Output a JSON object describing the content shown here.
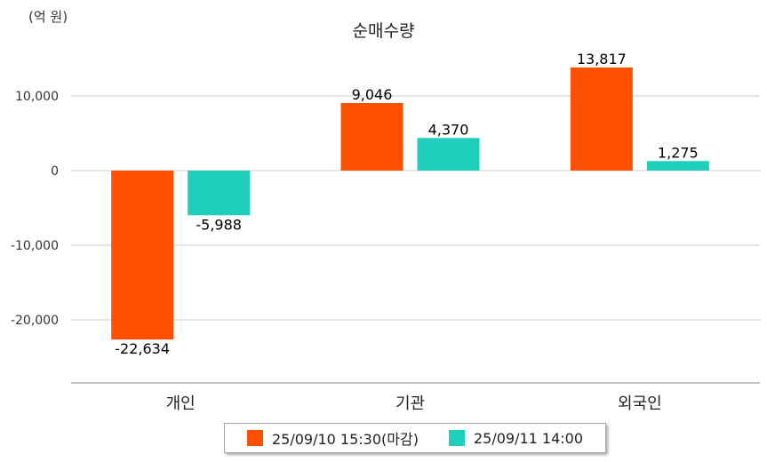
{
  "chart_data": {
    "type": "bar",
    "title": "순매수량",
    "unit_label": "(억 원)",
    "categories": [
      "개인",
      "기관",
      "외국인"
    ],
    "series": [
      {
        "name": "25/09/10 15:30(마감)",
        "color": "#ff5000",
        "values": [
          -22634,
          9046,
          13817
        ]
      },
      {
        "name": "25/09/11 14:00",
        "color": "#1ecfbb",
        "values": [
          -5988,
          4370,
          1275
        ]
      }
    ],
    "data_labels": [
      [
        "-22,634",
        "9,046",
        "13,817"
      ],
      [
        "-5,988",
        "4,370",
        "1,275"
      ]
    ],
    "y_ticks": [
      10000,
      0,
      -10000,
      -20000
    ],
    "y_tick_labels": [
      "10,000",
      "0",
      "-10,000",
      "-20,000"
    ],
    "ylim": [
      -28000,
      17000
    ],
    "grid": true,
    "legend_position": "bottom"
  }
}
